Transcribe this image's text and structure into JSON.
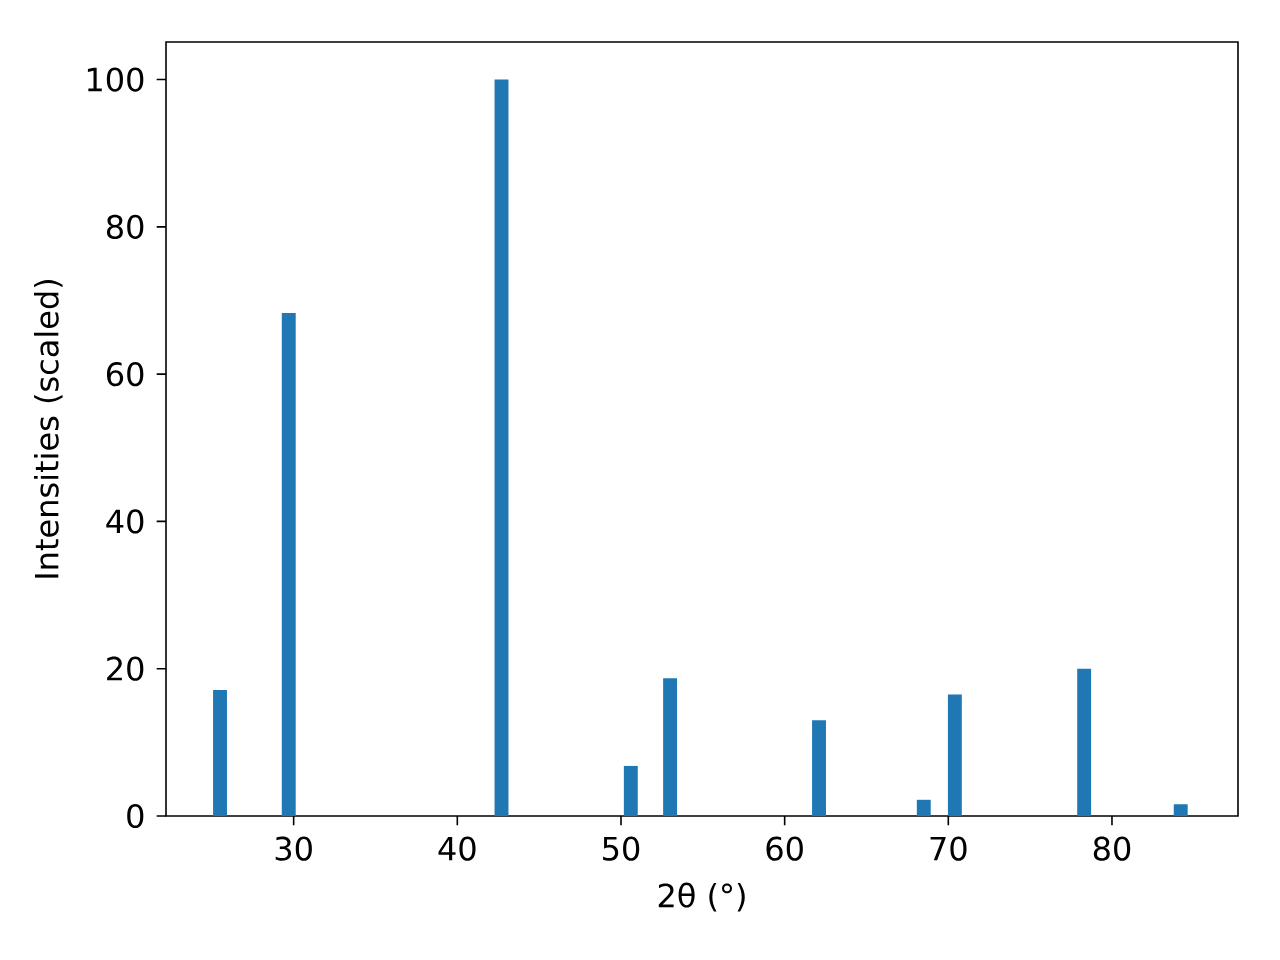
{
  "chart_data": {
    "type": "bar",
    "xlabel": "2θ (°)",
    "ylabel": "Intensities (scaled)",
    "x": [
      25.5,
      29.7,
      42.7,
      50.6,
      53.0,
      62.1,
      68.5,
      70.4,
      78.3,
      84.2
    ],
    "values": [
      17.1,
      68.3,
      100,
      6.8,
      18.7,
      13.0,
      2.2,
      16.5,
      20.0,
      1.6
    ],
    "color": "#1f77b4",
    "xlim": [
      22.2,
      87.7
    ],
    "xticks": [
      30,
      40,
      50,
      60,
      70,
      80
    ],
    "ylim": [
      0,
      105.1
    ],
    "yticks": [
      0,
      20,
      40,
      60,
      80,
      100
    ],
    "grid": false
  }
}
